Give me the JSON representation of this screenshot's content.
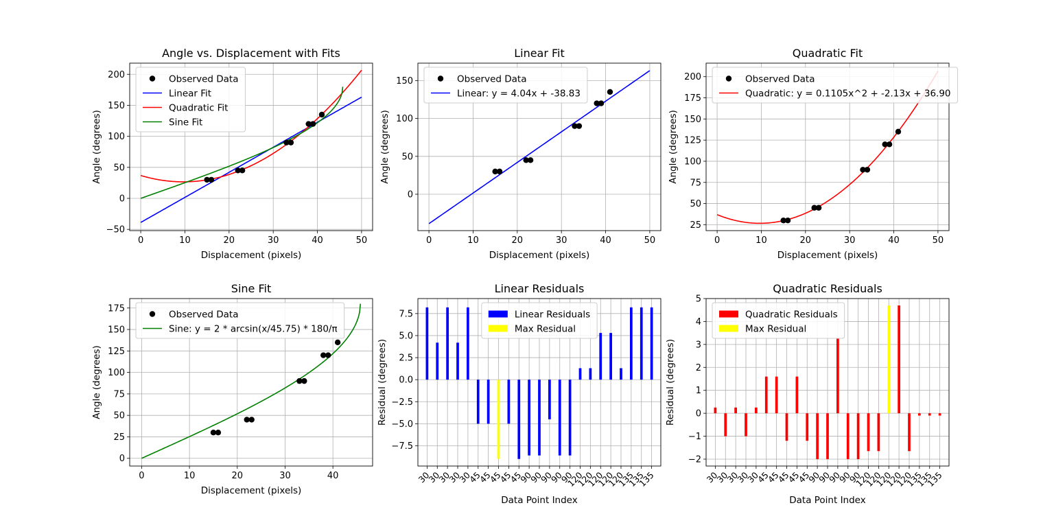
{
  "chart_data": [
    {
      "type": "scatter",
      "title": "Angle vs. Displacement with Fits",
      "xlabel": "Displacement (pixels)",
      "ylabel": "Angle (degrees)",
      "xlim": [
        -2.5,
        52.5
      ],
      "ylim": [
        -52,
        218
      ],
      "xticks": [
        0,
        10,
        20,
        30,
        40,
        50
      ],
      "yticks": [
        -50,
        0,
        50,
        100,
        150,
        200
      ],
      "grid": true,
      "legend_position": "upper-left",
      "points": {
        "name": "Observed Data",
        "color": "#000000",
        "x": [
          15,
          16,
          22,
          23,
          33,
          34,
          38,
          39,
          41
        ],
        "y": [
          30,
          30,
          45,
          45,
          90,
          90,
          120,
          120,
          135
        ]
      },
      "curves": [
        {
          "name": "Linear Fit",
          "kind": "linear",
          "color": "#0000ff"
        },
        {
          "name": "Quadratic Fit",
          "kind": "quadratic",
          "color": "#ff0000"
        },
        {
          "name": "Sine Fit",
          "kind": "sine",
          "color": "#008000"
        }
      ]
    },
    {
      "type": "scatter",
      "title": "Linear Fit",
      "xlabel": "Displacement (pixels)",
      "ylabel": "Angle (degrees)",
      "xlim": [
        -2.5,
        52.5
      ],
      "ylim": [
        -48,
        173
      ],
      "xticks": [
        0,
        10,
        20,
        30,
        40,
        50
      ],
      "yticks": [
        0,
        50,
        100,
        150
      ],
      "grid": true,
      "legend_position": "upper-left",
      "points": {
        "name": "Observed Data",
        "color": "#000000",
        "x": [
          15,
          16,
          22,
          23,
          33,
          34,
          38,
          39,
          41
        ],
        "y": [
          30,
          30,
          45,
          45,
          90,
          90,
          120,
          120,
          135
        ]
      },
      "curves": [
        {
          "name": "Linear: y = 4.04x + -38.83",
          "kind": "linear",
          "color": "#0000ff"
        }
      ]
    },
    {
      "type": "scatter",
      "title": "Quadratic Fit",
      "xlabel": "Displacement (pixels)",
      "ylabel": "Angle (degrees)",
      "xlim": [
        -2.5,
        52.5
      ],
      "ylim": [
        18,
        216
      ],
      "xticks": [
        0,
        10,
        20,
        30,
        40,
        50
      ],
      "yticks": [
        25,
        50,
        75,
        100,
        125,
        150,
        175,
        200
      ],
      "grid": true,
      "legend_position": "upper-left",
      "points": {
        "name": "Observed Data",
        "color": "#000000",
        "x": [
          15,
          16,
          22,
          23,
          33,
          34,
          38,
          39,
          41
        ],
        "y": [
          30,
          30,
          45,
          45,
          90,
          90,
          120,
          120,
          135
        ]
      },
      "curves": [
        {
          "name": "Quadratic: y = 0.1105x^2 + -2.13x + 36.90",
          "kind": "quadratic",
          "color": "#ff0000"
        }
      ]
    },
    {
      "type": "scatter",
      "title": "Sine Fit",
      "xlabel": "Displacement (pixels)",
      "ylabel": "Angle (degrees)",
      "xlim": [
        -2.5,
        48.3
      ],
      "ylim": [
        -9,
        186
      ],
      "xticks": [
        0,
        10,
        20,
        30,
        40
      ],
      "yticks": [
        0,
        25,
        50,
        75,
        100,
        125,
        150,
        175
      ],
      "grid": true,
      "legend_position": "upper-left",
      "points": {
        "name": "Observed Data",
        "color": "#000000",
        "x": [
          15,
          16,
          22,
          23,
          33,
          34,
          38,
          39,
          41
        ],
        "y": [
          30,
          30,
          45,
          45,
          90,
          90,
          120,
          120,
          135
        ]
      },
      "curves": [
        {
          "name": "Sine: y = 2 * arcsin(x/45.75) * 180/π",
          "kind": "sine",
          "color": "#008000"
        }
      ]
    },
    {
      "type": "bar",
      "title": "Linear Residuals",
      "xlabel": "Data Point Index",
      "ylabel": "Residual (degrees)",
      "ylim": [
        -9.8,
        9.2
      ],
      "yticks": [
        -7.5,
        -5.0,
        -2.5,
        0.0,
        2.5,
        5.0,
        7.5
      ],
      "ytick_labels": [
        "−7.5",
        "−5.0",
        "−2.5",
        "0.0",
        "2.5",
        "5.0",
        "7.5"
      ],
      "grid": true,
      "legend_position": "upper-center",
      "categories": [
        "30",
        "30",
        "30",
        "30",
        "30",
        "45",
        "45",
        "45",
        "45",
        "45",
        "90",
        "90",
        "90",
        "90",
        "90",
        "120",
        "120",
        "120",
        "120",
        "120",
        "135",
        "135",
        "135"
      ],
      "values": [
        8.2,
        4.2,
        8.2,
        4.2,
        8.2,
        -5.0,
        -5.0,
        -9.0,
        -5.0,
        -9.0,
        -8.6,
        -8.6,
        -4.5,
        -8.6,
        -8.6,
        1.3,
        1.3,
        5.3,
        5.3,
        1.3,
        8.2,
        8.2,
        8.2
      ],
      "highlight_index": 7,
      "bar_color": "#0000ff",
      "highlight_color": "#ffff00",
      "legend": [
        "Linear Residuals",
        "Max Residual"
      ]
    },
    {
      "type": "bar",
      "title": "Quadratic Residuals",
      "xlabel": "Data Point Index",
      "ylabel": "Residual (degrees)",
      "ylim": [
        -2.3,
        5.0
      ],
      "yticks": [
        -2,
        -1,
        0,
        1,
        2,
        3,
        4,
        5
      ],
      "ytick_labels": [
        "−2",
        "−1",
        "0",
        "1",
        "2",
        "3",
        "4",
        "5"
      ],
      "grid": true,
      "legend_position": "upper-left",
      "categories": [
        "30",
        "30",
        "30",
        "30",
        "30",
        "45",
        "45",
        "45",
        "45",
        "45",
        "90",
        "90",
        "90",
        "90",
        "90",
        "120",
        "120",
        "120",
        "120",
        "120",
        "135",
        "135",
        "135"
      ],
      "values": [
        0.25,
        -1.0,
        0.25,
        -1.0,
        0.25,
        1.6,
        1.6,
        -1.2,
        1.6,
        -1.2,
        -2.0,
        -2.0,
        3.25,
        -2.0,
        -2.0,
        -1.65,
        -1.65,
        4.7,
        4.7,
        -1.65,
        -0.1,
        -0.1,
        -0.1
      ],
      "highlight_index": 17,
      "bar_color": "#ff0000",
      "highlight_color": "#ffff00",
      "legend": [
        "Quadratic Residuals",
        "Max Residual"
      ]
    }
  ]
}
